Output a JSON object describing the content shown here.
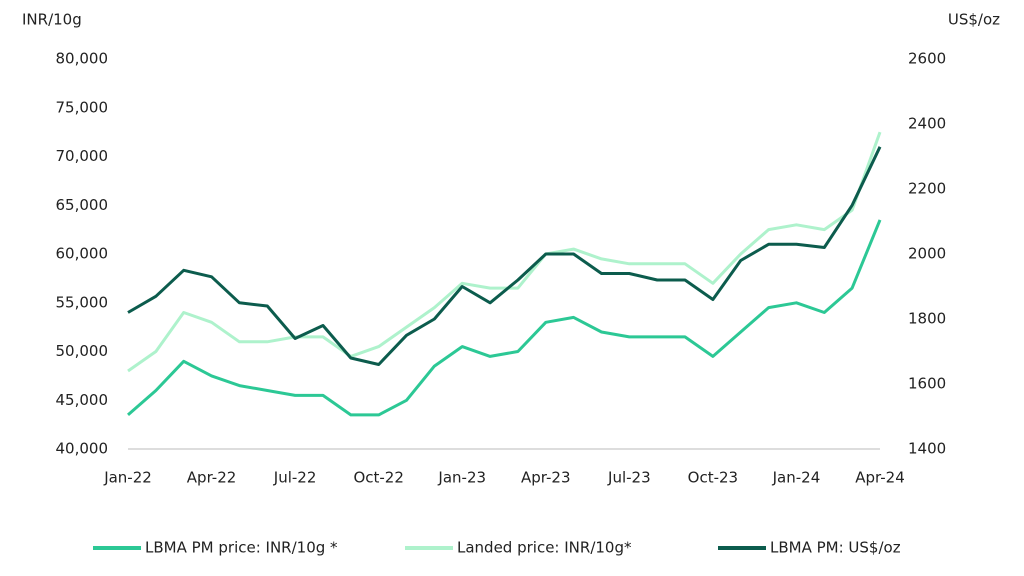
{
  "chart_data": {
    "type": "line",
    "y_label": "INR/10g",
    "y2_label": "US$/oz",
    "categories": [
      "Jan-22",
      null,
      null,
      "Apr-22",
      null,
      null,
      "Jul-22",
      null,
      null,
      "Oct-22",
      null,
      null,
      "Jan-23",
      null,
      null,
      "Apr-23",
      null,
      null,
      "Jul-23",
      null,
      null,
      "Oct-23",
      null,
      null,
      "Jan-24",
      null,
      null,
      "Apr-24"
    ],
    "series": [
      {
        "name": "LBMA PM price: INR/10g *",
        "color": "#2cc895",
        "values": [
          43500,
          46000,
          49000,
          47500,
          46500,
          46000,
          45500,
          45500,
          43500,
          43500,
          45000,
          48500,
          50500,
          49500,
          50000,
          53000,
          53500,
          52000,
          51500,
          51500,
          51500,
          49500,
          52000,
          54500,
          55000,
          54000,
          56500,
          63500
        ]
      },
      {
        "name": "Landed price: INR/10g*",
        "color": "#aef2cc",
        "values": [
          48000,
          50000,
          54000,
          53000,
          51000,
          51000,
          51500,
          51500,
          49500,
          50500,
          52500,
          54500,
          57000,
          56500,
          56500,
          60000,
          60500,
          59500,
          59000,
          59000,
          59000,
          57000,
          60000,
          62500,
          63000,
          62500,
          64500,
          72500
        ]
      },
      {
        "name": "LBMA PM: US$/oz",
        "color": "#0c5c4d",
        "axis": "y2",
        "values": [
          1820,
          1870,
          1950,
          1930,
          1850,
          1840,
          1740,
          1780,
          1680,
          1660,
          1750,
          1800,
          1900,
          1850,
          1920,
          2000,
          2000,
          1940,
          1940,
          1920,
          1920,
          1860,
          1980,
          2030,
          2030,
          2020,
          2150,
          2330
        ]
      }
    ],
    "ylim": [
      40000,
      80000
    ],
    "yticks": [
      {
        "value": 40000,
        "label": "40,000"
      },
      {
        "value": 45000,
        "label": "45,000"
      },
      {
        "value": 50000,
        "label": "50,000"
      },
      {
        "value": 55000,
        "label": "55,000"
      },
      {
        "value": 60000,
        "label": "60,000"
      },
      {
        "value": 65000,
        "label": "65,000"
      },
      {
        "value": 70000,
        "label": "70,000"
      },
      {
        "value": 75000,
        "label": "75,000"
      },
      {
        "value": 80000,
        "label": "80,000"
      }
    ],
    "y2lim": [
      1400,
      2600
    ],
    "y2ticks": [
      1400,
      1600,
      1800,
      2000,
      2200,
      2400,
      2600
    ],
    "grid": false
  }
}
